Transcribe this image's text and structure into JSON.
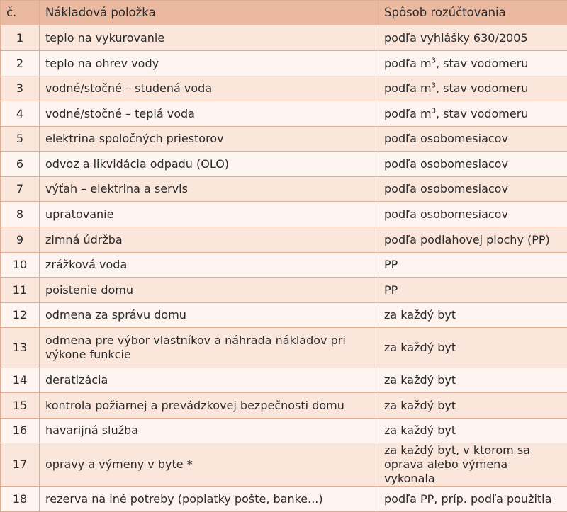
{
  "header": {
    "number": "č.",
    "item": "Nákladová položka",
    "method": "Spôsob rozúčtovania"
  },
  "rows": [
    [
      1,
      "teplo na vykurovanie",
      "podľa vyhlášky 630/2005"
    ],
    [
      2,
      "teplo na ohrev vody",
      {
        "before": "podľa m",
        "sup": "3",
        "after": ", stav vodomeru"
      }
    ],
    [
      3,
      "vodné/stočné – studená voda",
      {
        "before": "podľa m",
        "sup": "3",
        "after": ", stav vodomeru"
      }
    ],
    [
      4,
      "vodné/stočné – teplá voda",
      {
        "before": "podľa m",
        "sup": "3",
        "after": ", stav vodomeru"
      }
    ],
    [
      5,
      "elektrina spoločných priestorov",
      "podľa osobomesiacov"
    ],
    [
      6,
      "odvoz a likvidácia odpadu (OLO)",
      "podľa osobomesiacov"
    ],
    [
      7,
      "výťah – elektrina a servis",
      "podľa osobomesiacov"
    ],
    [
      8,
      "upratovanie",
      "podľa osobomesiacov"
    ],
    [
      9,
      "zimná údržba",
      "podľa podlahovej plochy (PP)"
    ],
    [
      10,
      "zrážková voda",
      "PP"
    ],
    [
      11,
      "poistenie domu",
      "PP"
    ],
    [
      12,
      "odmena za správu domu",
      "za každý byt"
    ],
    [
      13,
      "odmena pre výbor vlastníkov a náhrada nákladov pri výkone funkcie",
      "za každý byt"
    ],
    [
      14,
      "deratizácia",
      "za každý byt"
    ],
    [
      15,
      "kontrola požiarnej a prevádzkovej bezpečnosti domu",
      "za každý byt"
    ],
    [
      16,
      "havarijná služba",
      "za každý byt"
    ],
    [
      17,
      "opravy a výmeny v byte *",
      "za každý byt, v ktorom sa oprava alebo výmena vykonala"
    ],
    [
      18,
      "rezerva na iné potreby (poplatky pošte, banke...)",
      "podľa PP, príp. podľa použitia"
    ]
  ]
}
